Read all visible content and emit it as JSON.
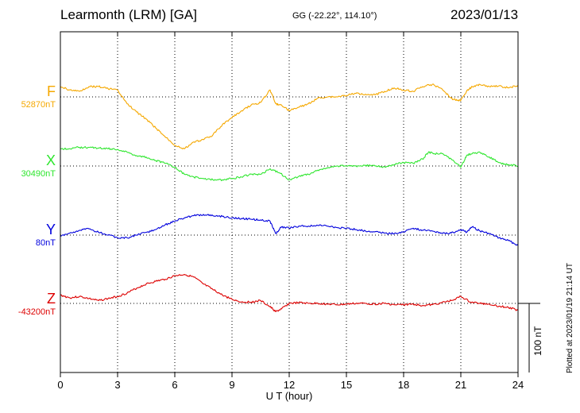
{
  "header": {
    "station": "Learmonth (LRM)  [GA]",
    "coords": "GG (-22.22°, 114.10°)",
    "date": "2023/01/13"
  },
  "footer": {
    "plotted": "Plotted at 2023/01/19 21:14 UT",
    "scale": "100 nT"
  },
  "chart_data": {
    "type": "line",
    "xlabel": "U T (hour)",
    "xlim": [
      0,
      24
    ],
    "xticks": [
      0,
      3,
      6,
      9,
      12,
      15,
      18,
      21,
      24
    ],
    "grid": true,
    "scale_bar_nT": 100,
    "series": [
      {
        "name": "F",
        "baseline_label": "52870nT",
        "baseline": 52870,
        "color": "#f5a800",
        "x": [
          0,
          0.5,
          1,
          1.5,
          2,
          2.5,
          3,
          3.5,
          4,
          4.5,
          5,
          5.5,
          6,
          6.5,
          7,
          7.5,
          8,
          8.5,
          9,
          9.5,
          10,
          10.5,
          11,
          11.3,
          11.6,
          12,
          12.5,
          13,
          13.5,
          14,
          14.5,
          15,
          15.5,
          16,
          16.5,
          17,
          17.5,
          18,
          18.5,
          19,
          19.5,
          20,
          20.5,
          20.8,
          21,
          21.3,
          21.6,
          22,
          22.5,
          23,
          23.5,
          24
        ],
        "y": [
          52885,
          52880,
          52878,
          52885,
          52885,
          52882,
          52880,
          52860,
          52848,
          52838,
          52825,
          52812,
          52800,
          52795,
          52805,
          52808,
          52815,
          52830,
          52840,
          52850,
          52858,
          52862,
          52880,
          52860,
          52858,
          52850,
          52855,
          52860,
          52868,
          52870,
          52870,
          52872,
          52875,
          52874,
          52873,
          52878,
          52883,
          52880,
          52878,
          52885,
          52888,
          52882,
          52868,
          52865,
          52865,
          52878,
          52885,
          52888,
          52885,
          52886,
          52883,
          52887
        ]
      },
      {
        "name": "X",
        "baseline_label": "30490nT",
        "baseline": 30490,
        "color": "#2ee62e",
        "x": [
          0,
          0.5,
          1,
          1.5,
          2,
          2.5,
          3,
          3.5,
          4,
          4.5,
          5,
          5.5,
          6,
          6.5,
          7,
          7.5,
          8,
          8.5,
          9,
          9.5,
          10,
          10.5,
          11,
          11.5,
          12,
          12.5,
          13,
          13.5,
          14,
          14.5,
          15,
          15.5,
          16,
          16.5,
          17,
          17.5,
          18,
          18.5,
          19,
          19.3,
          19.6,
          20,
          20.5,
          21,
          21.3,
          21.6,
          22,
          22.5,
          23,
          23.5,
          24
        ],
        "y": [
          30515,
          30515,
          30517,
          30517,
          30516,
          30515,
          30514,
          30510,
          30505,
          30503,
          30498,
          30494,
          30488,
          30478,
          30474,
          30472,
          30470,
          30470,
          30472,
          30474,
          30478,
          30478,
          30486,
          30480,
          30470,
          30475,
          30478,
          30484,
          30487,
          30490,
          30490,
          30490,
          30491,
          30490,
          30489,
          30492,
          30495,
          30494,
          30500,
          30510,
          30508,
          30508,
          30500,
          30488,
          30505,
          30508,
          30510,
          30503,
          30495,
          30492,
          30490
        ]
      },
      {
        "name": "Y",
        "baseline_label": "80nT",
        "baseline": 80,
        "color": "#0000dd",
        "x": [
          0,
          0.5,
          1,
          1.5,
          2,
          2.5,
          3,
          3.5,
          4,
          4.5,
          5,
          5.5,
          6,
          6.5,
          7,
          7.5,
          8,
          8.5,
          9,
          9.5,
          10,
          10.5,
          11,
          11.3,
          11.6,
          12,
          12.5,
          13,
          13.5,
          14,
          14.5,
          15,
          15.5,
          16,
          16.5,
          17,
          17.5,
          18,
          18.5,
          19,
          19.5,
          20,
          20.5,
          21,
          21.3,
          21.6,
          22,
          22.5,
          23,
          23.5,
          24
        ],
        "y": [
          78,
          83,
          87,
          89,
          84,
          80,
          76,
          76,
          80,
          84,
          88,
          95,
          100,
          105,
          108,
          110,
          108,
          107,
          105,
          104,
          103,
          102,
          100,
          82,
          92,
          90,
          93,
          93,
          94,
          93,
          91,
          90,
          88,
          86,
          85,
          83,
          82,
          85,
          90,
          87,
          86,
          83,
          83,
          88,
          84,
          92,
          86,
          82,
          76,
          72,
          65
        ]
      },
      {
        "name": "Z",
        "baseline_label": "-43200nT",
        "baseline": -43200,
        "color": "#dd0000",
        "x": [
          0,
          0.5,
          1,
          1.5,
          2,
          2.5,
          3,
          3.5,
          4,
          4.5,
          5,
          5.5,
          6,
          6.5,
          7,
          7.5,
          8,
          8.5,
          9,
          9.5,
          10,
          10.5,
          11,
          11.3,
          11.6,
          12,
          12.5,
          13,
          13.5,
          14,
          14.5,
          15,
          15.5,
          16,
          16.5,
          17,
          17.5,
          18,
          18.5,
          19,
          19.5,
          20,
          20.5,
          21,
          21.5,
          22,
          22.5,
          23,
          23.5,
          24
        ],
        "y": [
          -43188,
          -43192,
          -43190,
          -43193,
          -43196,
          -43193,
          -43190,
          -43185,
          -43178,
          -43172,
          -43168,
          -43165,
          -43160,
          -43158,
          -43162,
          -43172,
          -43180,
          -43188,
          -43194,
          -43198,
          -43198,
          -43196,
          -43205,
          -43212,
          -43208,
          -43200,
          -43199,
          -43200,
          -43200,
          -43201,
          -43202,
          -43201,
          -43200,
          -43200,
          -43201,
          -43200,
          -43202,
          -43202,
          -43201,
          -43203,
          -43202,
          -43199,
          -43196,
          -43190,
          -43198,
          -43200,
          -43201,
          -43204,
          -43206,
          -43210
        ]
      }
    ]
  }
}
